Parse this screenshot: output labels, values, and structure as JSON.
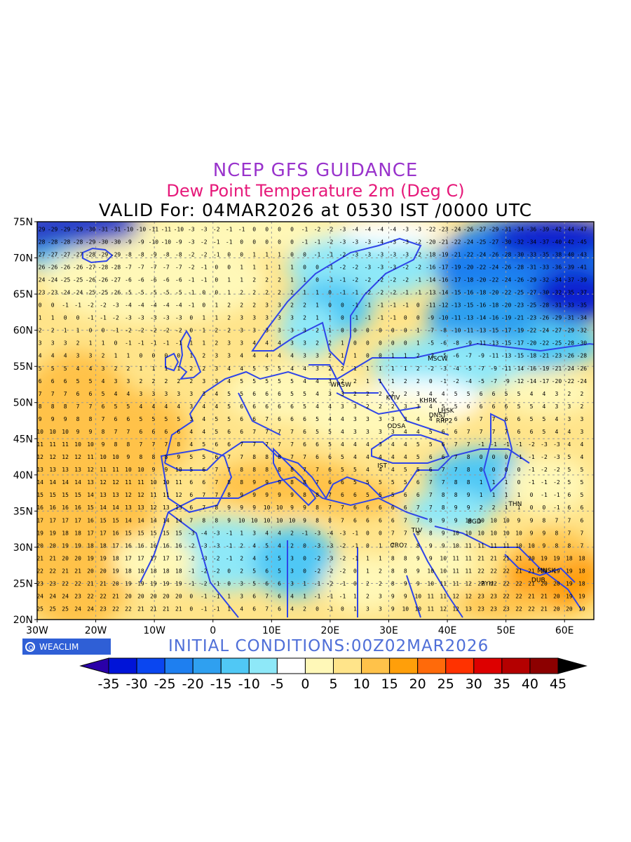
{
  "title": {
    "line1": "NCEP GFS GUIDANCE",
    "line2": "Dew Point Temperature 2m (Deg C)",
    "line3": "VALID For: 04MAR2026 at 0530 IST /0000 UTC"
  },
  "initial_conditions": "INITIAL CONDITIONS:00Z02MAR2026",
  "logo_text": "WEACLIM",
  "map": {
    "lon_range": [
      -30,
      65
    ],
    "lat_range": [
      20,
      75
    ],
    "lat_labels": [
      "75N",
      "70N",
      "65N",
      "60N",
      "55N",
      "50N",
      "45N",
      "40N",
      "35N",
      "30N",
      "25N",
      "20N"
    ],
    "lon_labels": [
      "30W",
      "20W",
      "10W",
      "0",
      "10E",
      "20E",
      "30E",
      "40E",
      "50E",
      "60E"
    ],
    "stations": [
      {
        "name": "MSCW",
        "lon": 37.6,
        "lat": 55.8
      },
      {
        "name": "WRSW",
        "lon": 21.0,
        "lat": 52.2
      },
      {
        "name": "KYIV",
        "lon": 30.5,
        "lat": 50.4
      },
      {
        "name": "KHRK",
        "lon": 36.2,
        "lat": 50.0
      },
      {
        "name": "LHSK",
        "lon": 39.3,
        "lat": 48.6
      },
      {
        "name": "DNST",
        "lon": 37.8,
        "lat": 48.0
      },
      {
        "name": "ODSA",
        "lon": 30.7,
        "lat": 46.5
      },
      {
        "name": "RRP2",
        "lon": 39.0,
        "lat": 47.2
      },
      {
        "name": "IST",
        "lon": 29.0,
        "lat": 41.0
      },
      {
        "name": "THN",
        "lon": 51.4,
        "lat": 35.7
      },
      {
        "name": "BGD",
        "lon": 44.4,
        "lat": 33.3
      },
      {
        "name": "TLV",
        "lon": 34.8,
        "lat": 32.1
      },
      {
        "name": "CRO",
        "lon": 31.2,
        "lat": 30.0
      },
      {
        "name": "MNSK",
        "lon": 56.3,
        "lat": 26.5
      },
      {
        "name": "RYH",
        "lon": 46.7,
        "lat": 24.7
      },
      {
        "name": "DUB",
        "lon": 55.3,
        "lat": 25.2
      }
    ]
  },
  "legend": {
    "labels": [
      "-35",
      "-30",
      "-25",
      "-20",
      "-15",
      "-10",
      "-5",
      "0",
      "5",
      "10",
      "15",
      "20",
      "25",
      "30",
      "35",
      "40",
      "45"
    ],
    "colors": [
      "#2a00a8",
      "#0014d8",
      "#0a46f0",
      "#1e7ff0",
      "#2fa0f0",
      "#50c8f5",
      "#8ee8f8",
      "#ffffff",
      "#fff8b8",
      "#ffe48a",
      "#ffc24a",
      "#ff9f0a",
      "#ff6a0a",
      "#ff3200",
      "#dd0000",
      "#b40000",
      "#8c0000",
      "#000000"
    ]
  }
}
